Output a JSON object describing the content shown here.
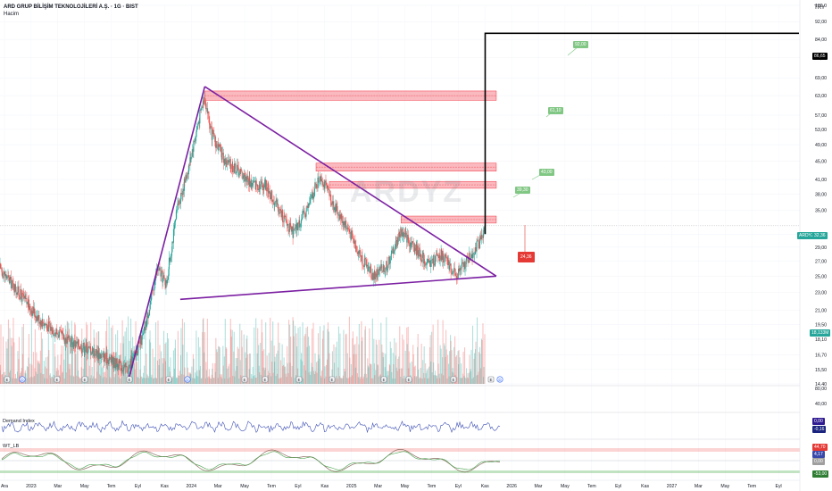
{
  "header": {
    "title": "ARD GRUP BİLİŞİM TEKNOLOJİLERİ A.Ş. · 1G · BIST",
    "volume_label": "Hacim",
    "currency": "TRY",
    "watermark": "ARDYZ"
  },
  "price_axis": {
    "ticks": [
      "100,0",
      "92,00",
      "84,00",
      "76,50",
      "69,00",
      "63,00",
      "57,00",
      "53,00",
      "49,00",
      "45,00",
      "41,00",
      "38,00",
      "35,00",
      "31,00",
      "29,00",
      "27,00",
      "25,00",
      "23,00",
      "21,00",
      "19,50",
      "18,10",
      "16,70",
      "15,50",
      "14,40"
    ],
    "labels": {
      "target_marker": "86,65",
      "ticker": "ARDYZ",
      "ticker_price": "32,36",
      "volume_value": "18,133M"
    }
  },
  "annotations": {
    "targets": [
      "92,00",
      "61,10",
      "43,00",
      "39,30"
    ],
    "stop": "24,36"
  },
  "events": [
    "E",
    "D",
    "E",
    "E",
    "E",
    "E",
    "D",
    "E",
    "E",
    "E",
    "E",
    "E",
    "E",
    "E",
    "E",
    "D"
  ],
  "indicators": {
    "ind1": {
      "name": "Demand Index",
      "axis_ticks": [
        "80,00",
        "40,00"
      ],
      "values": [
        "0,00",
        "-0,16"
      ]
    },
    "ind2": {
      "name": "WT_LB",
      "values": [
        "44,70",
        "4,17",
        "0,00",
        "-53,00"
      ]
    }
  },
  "time_axis": [
    "Ara",
    "2023",
    "Mar",
    "May",
    "Tem",
    "Eyl",
    "Kas",
    "2024",
    "Mar",
    "May",
    "Tem",
    "Eyl",
    "Kas",
    "2025",
    "Mar",
    "May",
    "Tem",
    "Eyl",
    "Kas",
    "2026",
    "Mar",
    "May",
    "Tem",
    "Eyl",
    "Kas",
    "2027",
    "Mar",
    "May",
    "Tem",
    "Eyl"
  ],
  "chart_data": {
    "type": "candlestick",
    "scale": "log",
    "x_range": [
      "2022-12",
      "2027-10"
    ],
    "y_range": [
      14.4,
      100
    ],
    "last_price": 32.36,
    "triangle": {
      "left_line": [
        [
          "2023-09-15",
          14.6
        ],
        [
          "2024-03-05",
          66.0
        ]
      ],
      "upper_line": [
        [
          "2024-03-05",
          66.0
        ],
        [
          "2025-12-20",
          25.0
        ]
      ],
      "lower_line": [
        [
          "2024-01-10",
          22.2
        ],
        [
          "2025-12-20",
          25.0
        ]
      ]
    },
    "target_path": [
      [
        "2025-11-25",
        31.0
      ],
      [
        "2025-11-25",
        86.65
      ],
      [
        "2027-10-31",
        86.65
      ]
    ],
    "resistance_zones": [
      {
        "from": "2024-03-05",
        "to": "2025-12-20",
        "low": 61.5,
        "high": 64.5
      },
      {
        "from": "2024-11-10",
        "to": "2025-12-20",
        "low": 42.8,
        "high": 44.6
      },
      {
        "from": "2024-12-10",
        "to": "2025-12-20",
        "low": 39.2,
        "high": 40.6
      },
      {
        "from": "2025-05-20",
        "to": "2025-12-20",
        "low": 32.8,
        "high": 34.0
      }
    ]
  }
}
